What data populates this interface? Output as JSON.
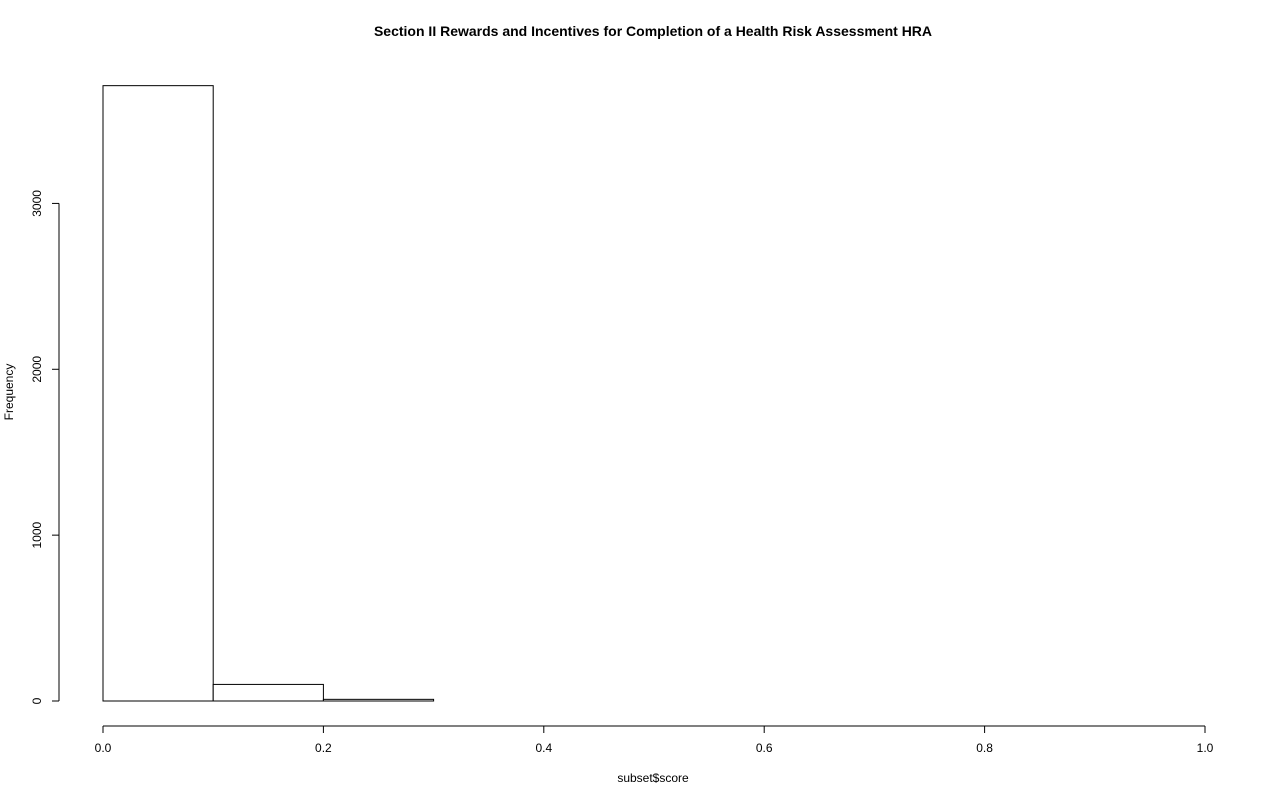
{
  "chart_data": {
    "type": "bar",
    "title": "Section II Rewards and Incentives for Completion of a Health Risk Assessment HRA",
    "xlabel": "subset$score",
    "ylabel": "Frequency",
    "xlim": [
      0,
      1
    ],
    "ylim": [
      0,
      3720
    ],
    "bin_edges": [
      0.0,
      0.1,
      0.2,
      0.3,
      0.4,
      0.5,
      0.6,
      0.7,
      0.8,
      0.9,
      1.0
    ],
    "values": [
      3710,
      100,
      10,
      0,
      0,
      0,
      0,
      0,
      0,
      0
    ],
    "x_ticks": [
      0,
      0.2,
      0.4,
      0.6,
      0.8,
      1
    ],
    "x_tick_labels": [
      "0.0",
      "0.2",
      "0.4",
      "0.6",
      "0.8",
      "1.0"
    ],
    "y_ticks": [
      0,
      1000,
      2000,
      3000
    ],
    "y_tick_labels": [
      "0",
      "1000",
      "2000",
      "3000"
    ],
    "grid": false,
    "legend": "none"
  }
}
